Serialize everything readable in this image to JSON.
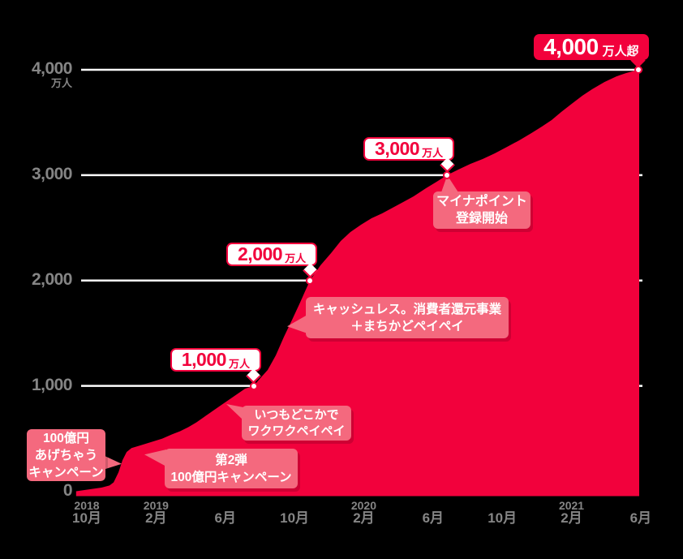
{
  "colors": {
    "background": "#000000",
    "area_red": "#F2013C",
    "callout_pink": "#F4697E",
    "grid_white": "#FFFFFF",
    "axis_gray": "#858585",
    "milestone_text_on_red": "#FFFFFF"
  },
  "chart_data": {
    "type": "area",
    "description_visible_text_only": "Registered user growth area chart, Oct 2018 - Jun 2021",
    "y_unit": "万人",
    "ylim": [
      0,
      4300
    ],
    "x_axis_months_since_2018_10": [
      0,
      32
    ],
    "grid": "horizontal white lines at 1000/2000/3000/4000",
    "legend_position": "none",
    "y_gridlines": [
      1000,
      2000,
      3000,
      4000
    ],
    "y_ticks": [
      {
        "v": 4000,
        "label": "4,000",
        "unit": "万人"
      },
      {
        "v": 3000,
        "label": "3,000"
      },
      {
        "v": 2000,
        "label": "2,000"
      },
      {
        "v": 1000,
        "label": "1,000"
      },
      {
        "v": 0,
        "label": "0"
      }
    ],
    "x_ticks": [
      {
        "m": 0,
        "year": "2018",
        "month": "10月"
      },
      {
        "m": 4,
        "year": "2019",
        "month": "2月"
      },
      {
        "m": 8,
        "year": "",
        "month": "6月"
      },
      {
        "m": 12,
        "year": "",
        "month": "10月"
      },
      {
        "m": 16,
        "year": "2020",
        "month": "2月"
      },
      {
        "m": 20,
        "year": "",
        "month": "6月"
      },
      {
        "m": 24,
        "year": "",
        "month": "10月"
      },
      {
        "m": 28,
        "year": "2021",
        "month": "2月"
      },
      {
        "m": 32,
        "year": "",
        "month": "6月"
      }
    ],
    "series": [
      {
        "points_m_v": [
          [
            -0.62,
            0
          ],
          [
            0.23,
            20
          ],
          [
            0.84,
            35
          ],
          [
            1.31,
            55
          ],
          [
            1.55,
            85
          ],
          [
            1.83,
            180
          ],
          [
            2.06,
            295
          ],
          [
            2.3,
            373
          ],
          [
            2.58,
            410
          ],
          [
            3.05,
            433
          ],
          [
            3.66,
            464
          ],
          [
            4.36,
            500
          ],
          [
            4.92,
            540
          ],
          [
            5.39,
            570
          ],
          [
            5.86,
            608
          ],
          [
            6.33,
            654
          ],
          [
            6.79,
            707
          ],
          [
            7.26,
            760
          ],
          [
            7.73,
            814
          ],
          [
            8.2,
            867
          ],
          [
            8.67,
            920
          ],
          [
            9.14,
            973
          ],
          [
            9.65,
            1000
          ],
          [
            9.98,
            1066
          ],
          [
            10.45,
            1151
          ],
          [
            10.92,
            1290
          ],
          [
            11.39,
            1467
          ],
          [
            11.86,
            1628
          ],
          [
            12.32,
            1790
          ],
          [
            12.61,
            1898
          ],
          [
            12.89,
            2000
          ],
          [
            13.5,
            2144
          ],
          [
            14.11,
            2260
          ],
          [
            14.67,
            2375
          ],
          [
            15.23,
            2460
          ],
          [
            15.84,
            2529
          ],
          [
            16.45,
            2591
          ],
          [
            17.06,
            2637
          ],
          [
            17.67,
            2691
          ],
          [
            18.28,
            2745
          ],
          [
            18.88,
            2799
          ],
          [
            19.59,
            2876
          ],
          [
            20.2,
            2937
          ],
          [
            20.81,
            3000
          ],
          [
            21.46,
            3053
          ],
          [
            22.16,
            3107
          ],
          [
            22.87,
            3153
          ],
          [
            23.57,
            3207
          ],
          [
            24.27,
            3268
          ],
          [
            24.98,
            3330
          ],
          [
            25.68,
            3399
          ],
          [
            26.29,
            3461
          ],
          [
            26.85,
            3523
          ],
          [
            27.41,
            3600
          ],
          [
            28.02,
            3677
          ],
          [
            28.63,
            3754
          ],
          [
            29.19,
            3815
          ],
          [
            29.9,
            3884
          ],
          [
            30.6,
            3938
          ],
          [
            31.16,
            3969
          ],
          [
            31.86,
            4000
          ],
          [
            31.91,
            4000
          ]
        ]
      }
    ],
    "milestones": [
      {
        "m": 9.65,
        "value": 1000,
        "label": "1,000",
        "suffix": "万人",
        "style": "outline"
      },
      {
        "m": 12.89,
        "value": 2000,
        "label": "2,000",
        "suffix": "万人",
        "style": "outline"
      },
      {
        "m": 20.81,
        "value": 3000,
        "label": "3,000",
        "suffix": "万人",
        "style": "outline"
      },
      {
        "m": 31.86,
        "value": 4000,
        "label": "4,000",
        "suffix": "万人超",
        "style": "filled"
      }
    ],
    "annotations": [
      {
        "lines": [
          "100億円",
          "あげちゃう",
          "キャンペーン"
        ]
      },
      {
        "lines": [
          "第2弾",
          "100億円キャンペーン"
        ]
      },
      {
        "lines": [
          "いつもどこかで",
          "ワクワクペイペイ"
        ]
      },
      {
        "lines": [
          "キャッシュレス。消費者還元事業",
          "＋まちかどペイペイ"
        ]
      },
      {
        "lines": [
          "マイナポイント",
          "登録開始"
        ]
      }
    ]
  }
}
